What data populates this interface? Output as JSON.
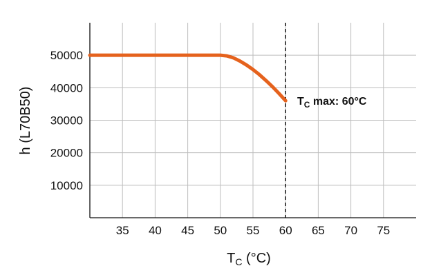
{
  "chart_data": {
    "type": "line",
    "title": "",
    "xlabel": {
      "main": "T",
      "sub": "C",
      "unit": " (°C)"
    },
    "ylabel": "h (L70B50)",
    "xlim": [
      30,
      80
    ],
    "ylim": [
      0,
      60000
    ],
    "x_ticks": [
      35,
      40,
      45,
      50,
      55,
      60,
      65,
      70,
      75
    ],
    "x_tick_labels": [
      "35",
      "40",
      "45",
      "50",
      "55",
      "60",
      "65",
      "70",
      "75"
    ],
    "y_ticks": [
      10000,
      20000,
      30000,
      40000,
      50000
    ],
    "y_tick_labels": [
      "10000",
      "20000",
      "30000",
      "40000",
      "50000"
    ],
    "grid": true,
    "series": [
      {
        "color": "#e5621d",
        "x": [
          30,
          35,
          40,
          45,
          50,
          51,
          52,
          53,
          54,
          55,
          56,
          57,
          58,
          59,
          60
        ],
        "y": [
          50000,
          50000,
          50000,
          50000,
          50000,
          49800,
          49200,
          48200,
          47000,
          45600,
          44000,
          42200,
          40300,
          38200,
          36000
        ]
      }
    ],
    "reference_line": {
      "x": 60,
      "style": "dashed"
    },
    "annotation": {
      "main": "T",
      "sub": "C",
      "rest": " max: 60°C",
      "x": 60,
      "y": 36000
    }
  }
}
